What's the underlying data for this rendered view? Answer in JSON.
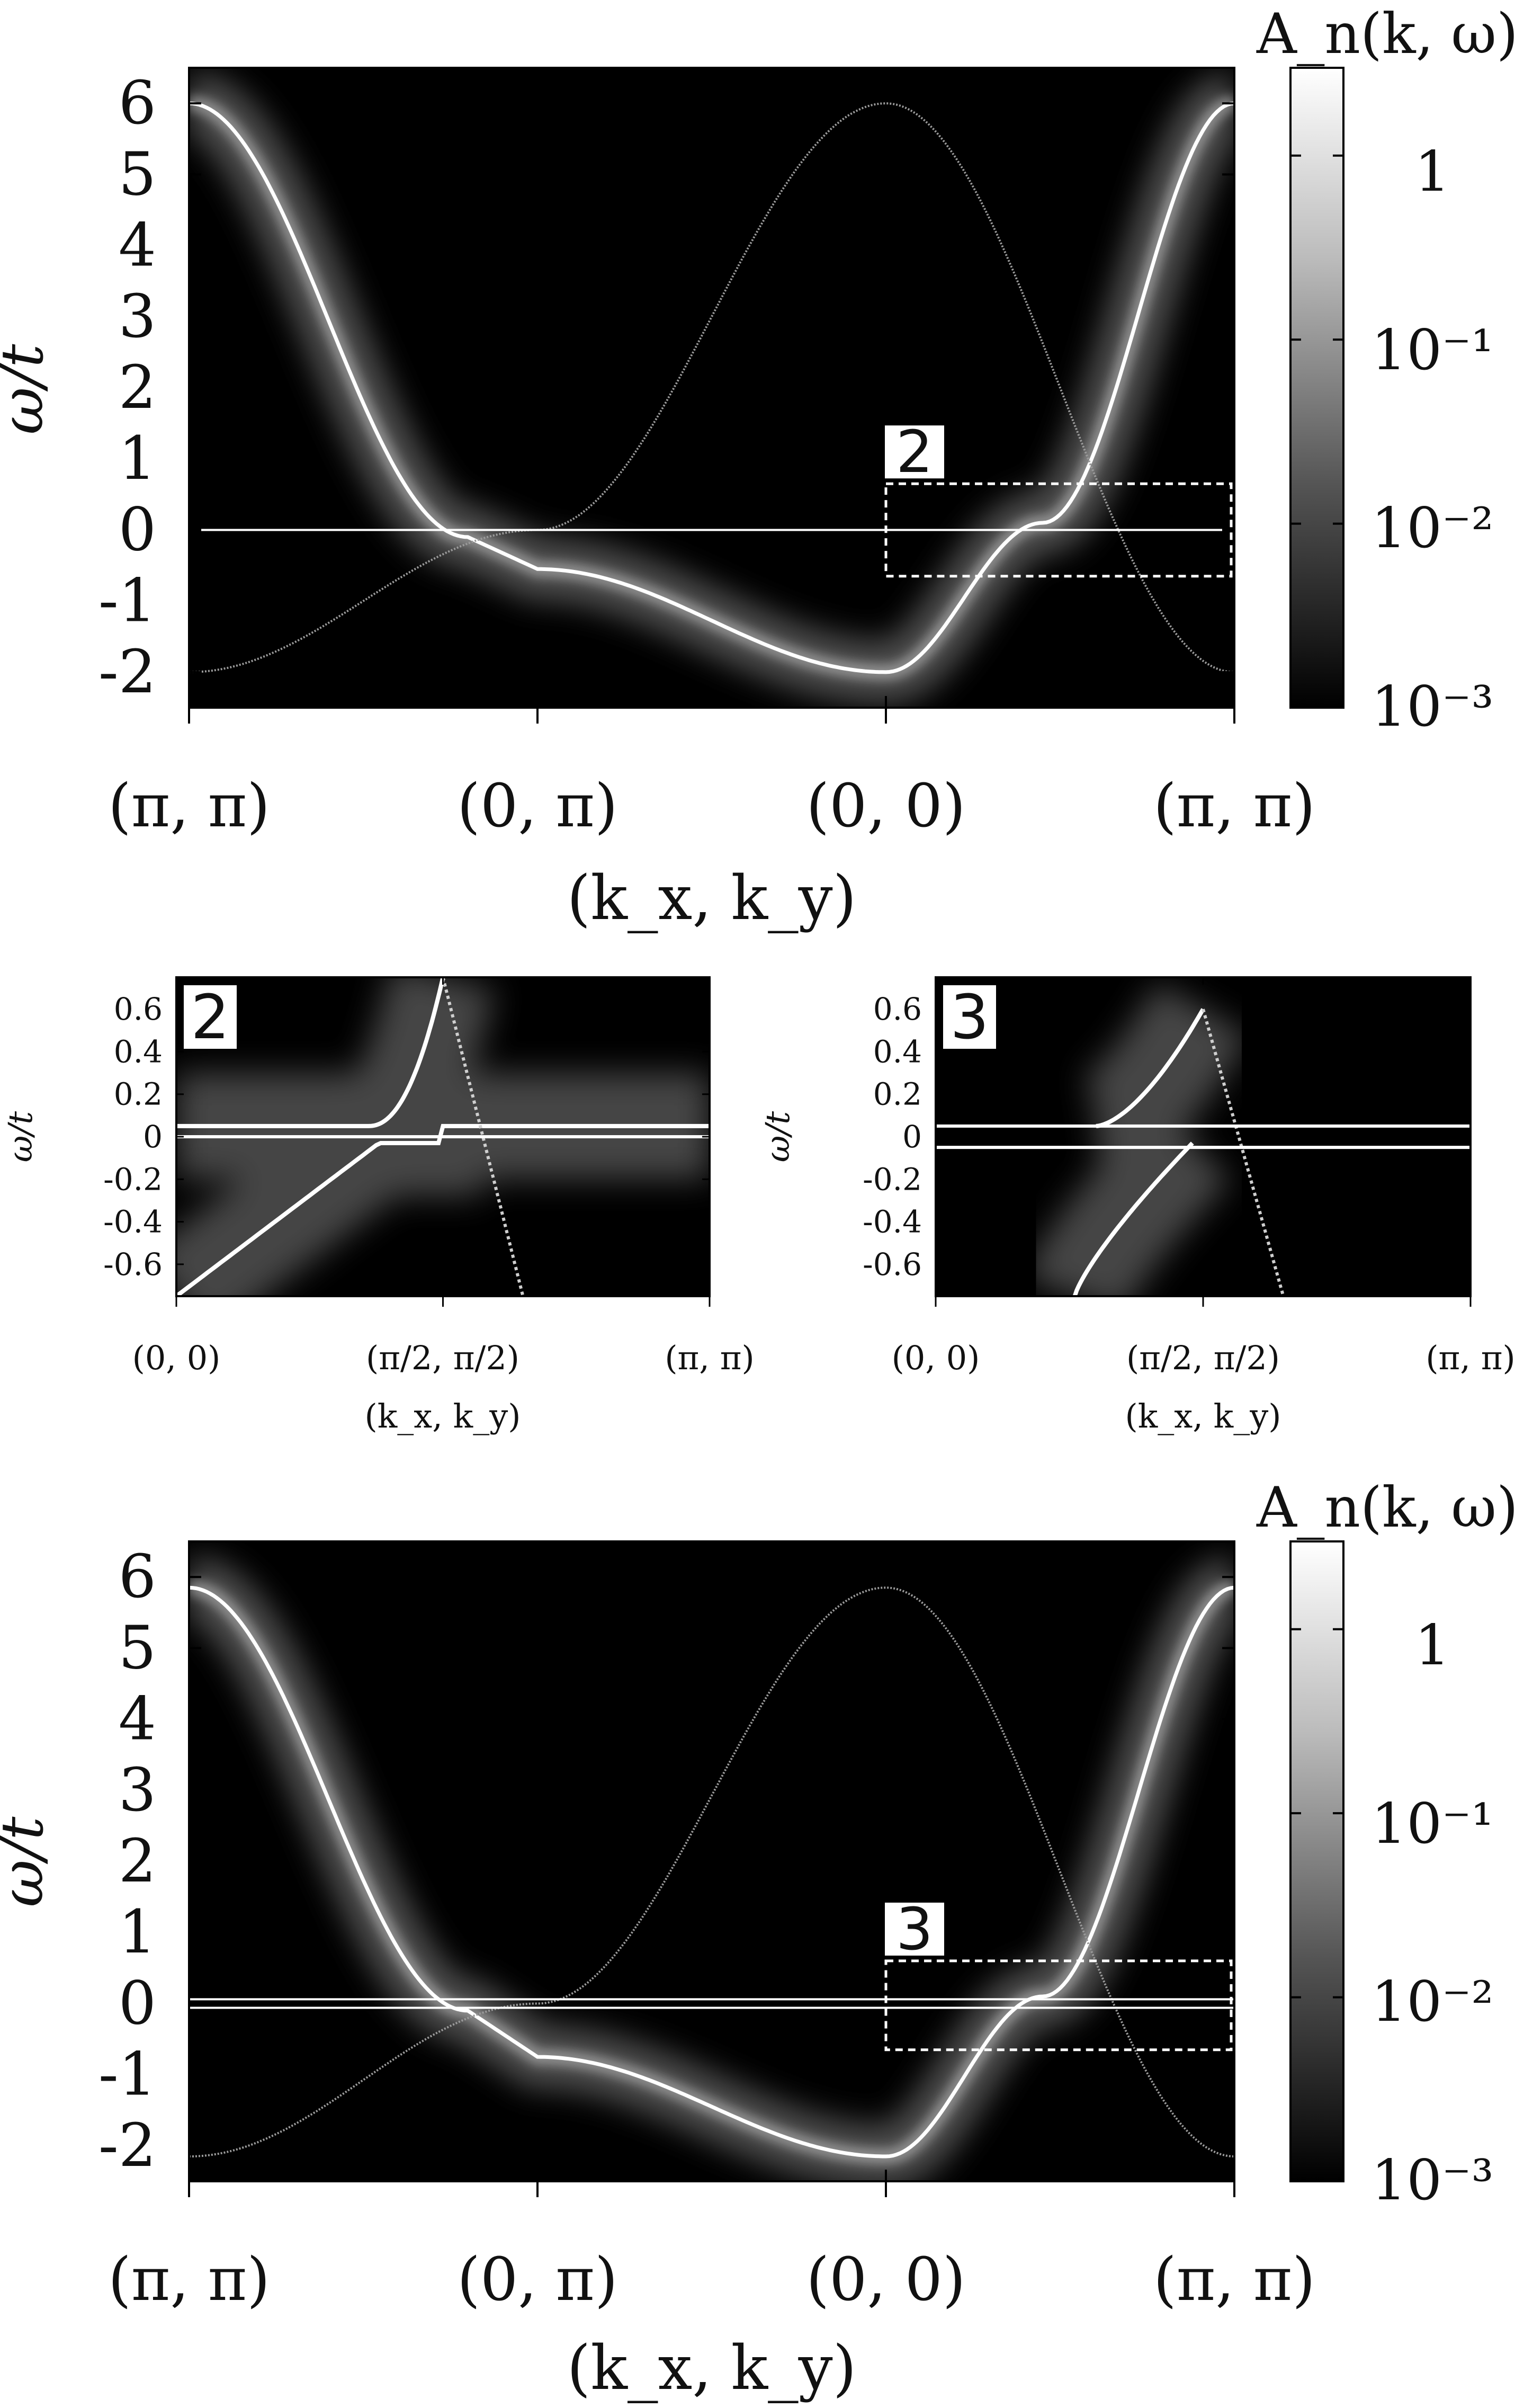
{
  "chart_data": [
    {
      "type": "heatmap",
      "panel": "top",
      "ylabel": "ω/t",
      "xlabel": "(k_x, k_y)",
      "x_ticks": [
        "(π, π)",
        "(0, π)",
        "(0, 0)",
        "(π, π)"
      ],
      "ylim": [
        -2.5,
        6.5
      ],
      "y_ticks": [
        "6",
        "5",
        "4",
        "3",
        "2",
        "1",
        "0",
        "-1",
        "-2"
      ],
      "colorbar": {
        "label": "A_n(k, ω)",
        "scale": "log",
        "range": [
          0.001,
          3
        ],
        "ticks": [
          "1",
          "10⁻¹",
          "10⁻²",
          "10⁻³"
        ]
      },
      "inset_box": {
        "tag": "2",
        "x_range": [
          "(0, 0)",
          "(π, π)"
        ],
        "ylim": [
          -0.65,
          0.65
        ]
      },
      "bands": [
        {
          "role": "broad dispersive band",
          "ptsX": [
            0,
            0.5,
            1,
            1.5,
            2,
            2.5,
            3
          ],
          "ptsY": [
            6.0,
            3.0,
            -0.5,
            -0.6,
            -2.0,
            0.1,
            6.0
          ]
        },
        {
          "role": "sharp shadow band",
          "ptsX": [
            0,
            1,
            2,
            3
          ],
          "ptsY": [
            -2.0,
            0.0,
            6.0,
            -2.0
          ]
        },
        {
          "role": "flat band",
          "energy": 0.0
        }
      ]
    },
    {
      "type": "heatmap",
      "panel": "zoom-2",
      "tag": "2",
      "ylabel": "ω/t",
      "xlabel": "(k_x, k_y)",
      "x_ticks": [
        "(0, 0)",
        "(π/2, π/2)",
        "(π, π)"
      ],
      "ylim": [
        -0.75,
        0.75
      ],
      "y_ticks": [
        "0.6",
        "0.4",
        "0.2",
        "0",
        "-0.2",
        "-0.4",
        "-0.6"
      ]
    },
    {
      "type": "heatmap",
      "panel": "zoom-3",
      "tag": "3",
      "ylabel": "ω/t",
      "xlabel": "(k_x, k_y)",
      "x_ticks": [
        "(0, 0)",
        "(π/2, π/2)",
        "(π, π)"
      ],
      "ylim": [
        -0.75,
        0.75
      ],
      "y_ticks": [
        "0.6",
        "0.4",
        "0.2",
        "0",
        "-0.2",
        "-0.4",
        "-0.6"
      ]
    },
    {
      "type": "heatmap",
      "panel": "bottom",
      "ylabel": "ω/t",
      "xlabel": "(k_x, k_y)",
      "x_ticks": [
        "(π, π)",
        "(0, π)",
        "(0, 0)",
        "(π, π)"
      ],
      "ylim": [
        -2.5,
        6.5
      ],
      "y_ticks": [
        "6",
        "5",
        "4",
        "3",
        "2",
        "1",
        "0",
        "-1",
        "-2"
      ],
      "colorbar": {
        "label": "A_n(k, ω)",
        "scale": "log",
        "range": [
          0.001,
          3
        ],
        "ticks": [
          "1",
          "10⁻¹",
          "10⁻²",
          "10⁻³"
        ]
      },
      "inset_box": {
        "tag": "3",
        "x_range": [
          "(0, 0)",
          "(π, π)"
        ],
        "ylim": [
          -0.65,
          0.6
        ]
      },
      "bands": [
        {
          "role": "broad dispersive band",
          "ptsX": [
            0,
            0.5,
            1,
            1.5,
            2,
            2.5,
            3
          ],
          "ptsY": [
            5.85,
            3.0,
            -0.7,
            -0.8,
            -2.15,
            0.0,
            5.85
          ]
        },
        {
          "role": "sharp shadow band",
          "ptsX": [
            0,
            1,
            2,
            3
          ],
          "ptsY": [
            -2.15,
            0.0,
            5.85,
            -2.15
          ]
        },
        {
          "role": "flat bands",
          "energies": [
            0.06,
            -0.06
          ]
        }
      ]
    }
  ]
}
